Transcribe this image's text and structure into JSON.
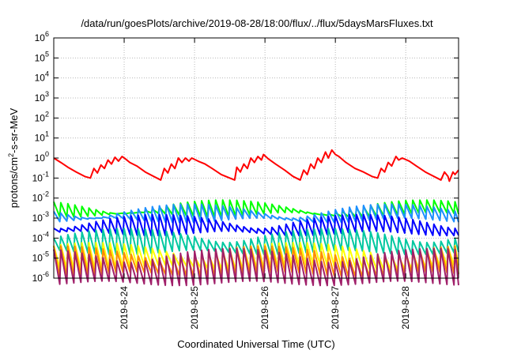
{
  "chart_data": {
    "type": "line",
    "title": "/data/run/goesPlots/archive/2019-08-28/18:00/flux/../flux/5daysMarsFluxes.txt",
    "xlabel": "Coordinated Universal Time (UTC)",
    "ylabel": {
      "prefix": "protons/cm",
      "sup": "2",
      "suffix": "-s-sr-MeV"
    },
    "y_scale": "log",
    "ylim": [
      1e-06,
      1000000.0
    ],
    "xlim_days": [
      0,
      5.75
    ],
    "grid": true,
    "y_ticks": [
      {
        "exp": "-6"
      },
      {
        "exp": "-5"
      },
      {
        "exp": "-4"
      },
      {
        "exp": "-3"
      },
      {
        "exp": "-2"
      },
      {
        "exp": "-1"
      },
      {
        "exp": "0"
      },
      {
        "exp": "1"
      },
      {
        "exp": "2"
      },
      {
        "exp": "3"
      },
      {
        "exp": "4"
      },
      {
        "exp": "5"
      },
      {
        "exp": "6"
      }
    ],
    "x_ticks": [
      {
        "label": "2019-8-24",
        "x": 1
      },
      {
        "label": "2019-8-25",
        "x": 2
      },
      {
        "label": "2019-8-26",
        "x": 3
      },
      {
        "label": "2019-8-27",
        "x": 4
      },
      {
        "label": "2019-8-28",
        "x": 5
      }
    ],
    "series": [
      {
        "color": "#ff0000",
        "points": [
          [
            0,
            1.0
          ],
          [
            0.1,
            0.6
          ],
          [
            0.2,
            0.35
          ],
          [
            0.32,
            0.2
          ],
          [
            0.44,
            0.12
          ],
          [
            0.52,
            0.1
          ],
          [
            0.57,
            0.3
          ],
          [
            0.62,
            0.18
          ],
          [
            0.67,
            0.45
          ],
          [
            0.72,
            0.3
          ],
          [
            0.77,
            0.8
          ],
          [
            0.82,
            0.5
          ],
          [
            0.87,
            1.1
          ],
          [
            0.92,
            0.7
          ],
          [
            0.97,
            1.2
          ],
          [
            1.02,
            0.9
          ],
          [
            1.08,
            0.6
          ],
          [
            1.18,
            0.4
          ],
          [
            1.3,
            0.2
          ],
          [
            1.42,
            0.12
          ],
          [
            1.52,
            0.08
          ],
          [
            1.57,
            0.3
          ],
          [
            1.62,
            0.18
          ],
          [
            1.67,
            0.5
          ],
          [
            1.72,
            0.3
          ],
          [
            1.77,
            1.0
          ],
          [
            1.82,
            0.6
          ],
          [
            1.87,
            1.0
          ],
          [
            1.92,
            0.7
          ],
          [
            1.96,
            1.0
          ],
          [
            2.05,
            0.7
          ],
          [
            2.15,
            0.5
          ],
          [
            2.25,
            0.3
          ],
          [
            2.38,
            0.15
          ],
          [
            2.5,
            0.1
          ],
          [
            2.57,
            0.08
          ],
          [
            2.6,
            0.35
          ],
          [
            2.65,
            0.2
          ],
          [
            2.7,
            0.5
          ],
          [
            2.75,
            0.3
          ],
          [
            2.8,
            1.0
          ],
          [
            2.85,
            0.6
          ],
          [
            2.9,
            1.2
          ],
          [
            2.95,
            0.8
          ],
          [
            2.98,
            1.5
          ],
          [
            3.05,
            0.9
          ],
          [
            3.15,
            0.5
          ],
          [
            3.28,
            0.25
          ],
          [
            3.4,
            0.12
          ],
          [
            3.5,
            0.08
          ],
          [
            3.55,
            0.25
          ],
          [
            3.6,
            0.15
          ],
          [
            3.65,
            0.5
          ],
          [
            3.7,
            0.3
          ],
          [
            3.75,
            1.0
          ],
          [
            3.8,
            0.6
          ],
          [
            3.86,
            2.0
          ],
          [
            3.9,
            1.0
          ],
          [
            3.95,
            2.5
          ],
          [
            4.0,
            1.5
          ],
          [
            4.05,
            1.2
          ],
          [
            4.15,
            0.6
          ],
          [
            4.28,
            0.3
          ],
          [
            4.4,
            0.2
          ],
          [
            4.52,
            0.12
          ],
          [
            4.6,
            0.1
          ],
          [
            4.65,
            0.3
          ],
          [
            4.7,
            0.2
          ],
          [
            4.75,
            0.6
          ],
          [
            4.8,
            0.4
          ],
          [
            4.86,
            1.2
          ],
          [
            4.9,
            0.8
          ],
          [
            4.95,
            1.0
          ],
          [
            5.05,
            0.7
          ],
          [
            5.15,
            0.4
          ],
          [
            5.28,
            0.2
          ],
          [
            5.4,
            0.12
          ],
          [
            5.5,
            0.08
          ],
          [
            5.55,
            0.2
          ],
          [
            5.6,
            0.12
          ],
          [
            5.62,
            0.07
          ],
          [
            5.67,
            0.2
          ],
          [
            5.7,
            0.15
          ],
          [
            5.75,
            0.25
          ]
        ]
      },
      {
        "color": "#00ff00",
        "base": 0.0025,
        "peak": 0.008,
        "amp": 2.2
      },
      {
        "color": "#1e90ff",
        "base": 0.0015,
        "peak": 0.005,
        "amp": 2.5
      },
      {
        "color": "#0000ff",
        "base": 0.0004,
        "peak": 0.0015,
        "amp": 3.0
      },
      {
        "color": "#00c8a0",
        "base": 6e-05,
        "peak": 0.0003,
        "amp": 4.0
      },
      {
        "color": "#ffff00",
        "base": 1.2e-05,
        "peak": 6e-05,
        "amp": 4.5
      },
      {
        "color": "#ff8c00",
        "base": 6e-06,
        "peak": 4e-05,
        "amp": 5.0
      },
      {
        "color": "#a0206a",
        "base": 3e-06,
        "peak": 3e-05,
        "amp": 7.0
      }
    ]
  }
}
